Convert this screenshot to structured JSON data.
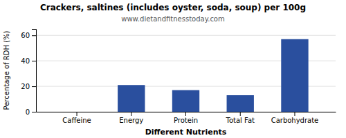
{
  "chart_data": {
    "type": "bar",
    "title": "Crackers, saltines (includes oyster, soda, soup) per 100g",
    "subtitle": "www.dietandfitnesstoday.com",
    "xlabel": "Different Nutrients",
    "ylabel": "Percentage of RDH (%)",
    "categories": [
      "Caffeine",
      "Energy",
      "Protein",
      "Total Fat",
      "Carbohydrate"
    ],
    "values": [
      0,
      21,
      17,
      13,
      57
    ],
    "color": "#2a4f9e",
    "ylim": [
      0,
      65
    ],
    "yticks": [
      0,
      20,
      40,
      60
    ],
    "grid": true
  }
}
